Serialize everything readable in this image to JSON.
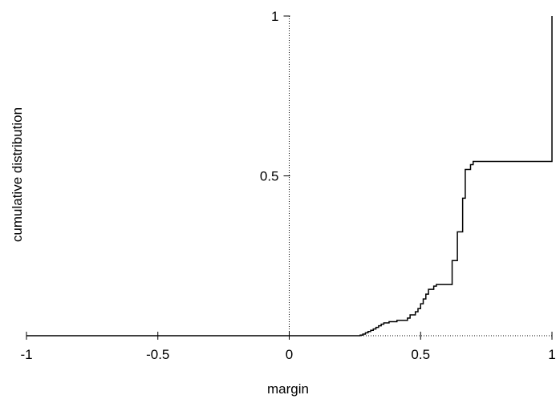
{
  "chart_data": {
    "type": "line",
    "title": "",
    "xlabel": "margin",
    "ylabel": "cumulative distribution",
    "xlim": [
      -1,
      1
    ],
    "ylim": [
      0,
      1
    ],
    "x_ticks": [
      "-1",
      "-0.5",
      "0",
      "0.5",
      "1"
    ],
    "x_tick_values": [
      -1,
      -0.5,
      0,
      0.5,
      1
    ],
    "y_ticks": [
      "0.5",
      "1"
    ],
    "y_tick_values": [
      0.5,
      1
    ],
    "grid": false,
    "reference_lines": [
      "x = 0 (dotted)",
      "y = 0 (dotted)"
    ],
    "line_color": "#000000",
    "series": [
      {
        "step": true,
        "x": [
          -1.0,
          0.27,
          0.28,
          0.29,
          0.3,
          0.31,
          0.32,
          0.33,
          0.34,
          0.35,
          0.36,
          0.38,
          0.41,
          0.45,
          0.46,
          0.48,
          0.49,
          0.5,
          0.51,
          0.52,
          0.53,
          0.55,
          0.56,
          0.62,
          0.64,
          0.66,
          0.67,
          0.69,
          0.7,
          1.0,
          1.0
        ],
        "y": [
          0.0,
          0.002,
          0.005,
          0.009,
          0.013,
          0.017,
          0.021,
          0.026,
          0.031,
          0.036,
          0.04,
          0.044,
          0.048,
          0.055,
          0.065,
          0.075,
          0.085,
          0.1,
          0.115,
          0.13,
          0.145,
          0.155,
          0.16,
          0.235,
          0.325,
          0.43,
          0.52,
          0.535,
          0.545,
          0.545,
          1.0
        ]
      }
    ]
  }
}
